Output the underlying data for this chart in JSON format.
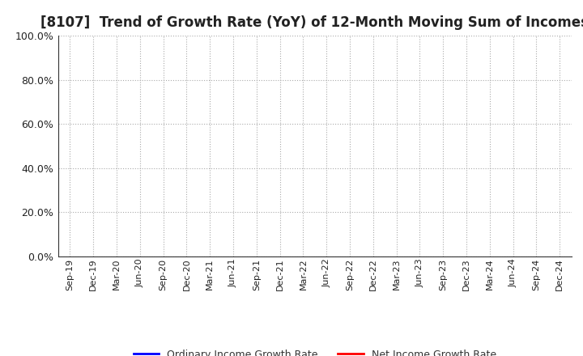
{
  "title": "[8107]  Trend of Growth Rate (YoY) of 12-Month Moving Sum of Incomes",
  "title_fontsize": 12,
  "title_color": "#222222",
  "ylim": [
    0.0,
    1.0
  ],
  "yticks": [
    0.0,
    0.2,
    0.4,
    0.6,
    0.8,
    1.0
  ],
  "ytick_labels": [
    "0.0%",
    "20.0%",
    "40.0%",
    "60.0%",
    "80.0%",
    "100.0%"
  ],
  "xtick_labels": [
    "Sep-19",
    "Dec-19",
    "Mar-20",
    "Jun-20",
    "Sep-20",
    "Dec-20",
    "Mar-21",
    "Jun-21",
    "Sep-21",
    "Dec-21",
    "Mar-22",
    "Jun-22",
    "Sep-22",
    "Dec-22",
    "Mar-23",
    "Jun-23",
    "Sep-23",
    "Dec-23",
    "Mar-24",
    "Jun-24",
    "Sep-24",
    "Dec-24"
  ],
  "ordinary_income_color": "#0000ff",
  "net_income_color": "#ff0000",
  "legend_labels": [
    "Ordinary Income Growth Rate",
    "Net Income Growth Rate"
  ],
  "background_color": "#ffffff",
  "plot_bg_color": "#ffffff",
  "grid_color": "#aaaaaa",
  "ordinary_income_values": [],
  "net_income_values": []
}
